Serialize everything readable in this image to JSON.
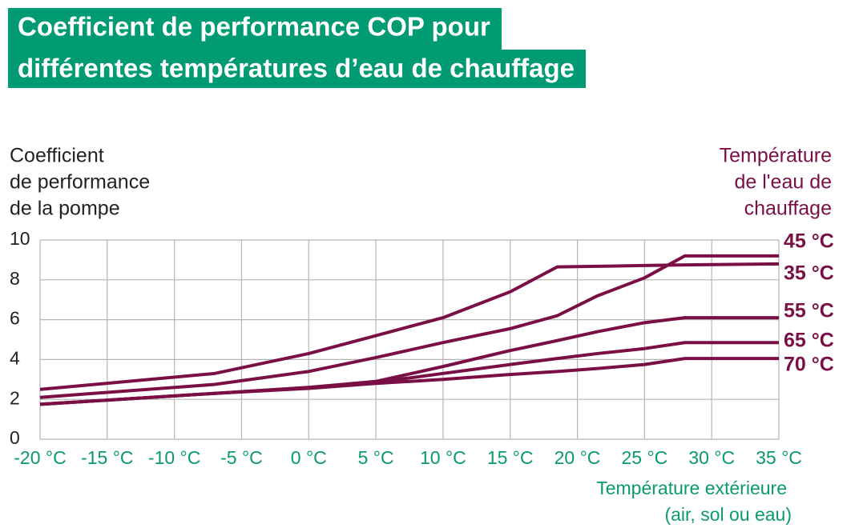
{
  "chart_data": {
    "type": "line",
    "title_lines": [
      "Coefficient de performance COP pour",
      "différentes températures d’eau de chauffage"
    ],
    "y_label_lines": [
      "Coefficient",
      "de performance",
      "de la pompe"
    ],
    "legend_title_lines": [
      "Température",
      "de l'eau de",
      "chauffage"
    ],
    "x_label_lines": [
      "Température extérieure",
      "(air, sol ou eau)"
    ],
    "x": [
      -20,
      -7,
      0,
      5,
      10,
      15,
      18.5,
      21.5,
      25,
      28,
      35
    ],
    "series": [
      {
        "name": "45 °C",
        "color": "#7a0f45",
        "values": [
          2.1,
          2.75,
          3.4,
          4.1,
          4.85,
          5.55,
          6.2,
          7.2,
          8.1,
          9.2,
          9.2
        ]
      },
      {
        "name": "35 °C",
        "color": "#7a0f45",
        "values": [
          2.5,
          3.3,
          4.3,
          5.2,
          6.1,
          7.4,
          8.65,
          8.68,
          8.72,
          8.75,
          8.8
        ]
      },
      {
        "name": "55 °C",
        "color": "#7a0f45",
        "values": [
          1.75,
          2.3,
          2.6,
          2.9,
          3.65,
          4.45,
          4.95,
          5.4,
          5.85,
          6.1,
          6.1
        ]
      },
      {
        "name": "65 °C",
        "color": "#7a0f45",
        "values": [
          1.75,
          2.3,
          2.6,
          2.85,
          3.3,
          3.75,
          4.05,
          4.3,
          4.55,
          4.85,
          4.85
        ]
      },
      {
        "name": "70 °C",
        "color": "#7a0f45",
        "values": [
          1.75,
          2.3,
          2.55,
          2.8,
          3.0,
          3.25,
          3.4,
          3.55,
          3.75,
          4.05,
          4.05
        ]
      }
    ],
    "xlim": [
      -20,
      35
    ],
    "xticks": [
      {
        "value": -20,
        "label": "-20 °C"
      },
      {
        "value": -15,
        "label": "-15 °C"
      },
      {
        "value": -10,
        "label": "-10 °C"
      },
      {
        "value": -5,
        "label": "-5 °C"
      },
      {
        "value": 0,
        "label": "0 °C"
      },
      {
        "value": 5,
        "label": "5 °C"
      },
      {
        "value": 10,
        "label": "10 °C"
      },
      {
        "value": 15,
        "label": "15 °C"
      },
      {
        "value": 20,
        "label": "20 °C"
      },
      {
        "value": 25,
        "label": "25 °C"
      },
      {
        "value": 30,
        "label": "30 °C"
      },
      {
        "value": 35,
        "label": "35 °C"
      }
    ],
    "ylim": [
      0,
      10
    ],
    "yticks": [
      0,
      2,
      4,
      6,
      8,
      10
    ],
    "grid": true,
    "title_color": "#009b72"
  }
}
